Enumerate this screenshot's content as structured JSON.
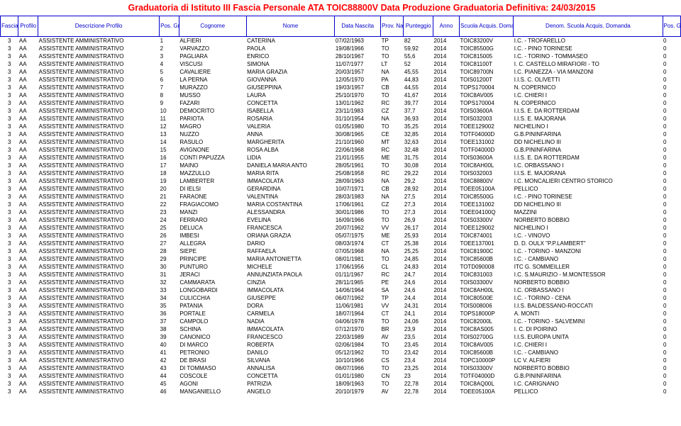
{
  "title": "Graduatoria di Istituto III Fascia Personale ATA TOIC88800V Data Produzione Graduatoria Definitiva: 24/03/2015",
  "columns": [
    "Fascia",
    "Profilo",
    "Descrizione Profilo",
    "Pos. Grad uator ia",
    "Cognome",
    "Nome",
    "Data Nascita",
    "Prov. Nascita",
    "Punteggio",
    "Anno",
    "Scuola Acquis. Domanda",
    "Denom. Scuola Acquis. Domanda",
    "Pos. Gra d. Prov"
  ],
  "rows": [
    [
      "3",
      "AA",
      "ASSISTENTE AMMINISTRATIVO",
      "1",
      "ALFIERI",
      "CATERINA",
      "07/02/1963",
      "TP",
      "82",
      "2014",
      "TOIC83200V",
      "I.C. - TROFARELLO",
      "0"
    ],
    [
      "3",
      "AA",
      "ASSISTENTE AMMINISTRATIVO",
      "2",
      "VARVAZZO",
      "PAOLA",
      "19/08/1966",
      "TO",
      "59,92",
      "2014",
      "TOIC85500G",
      "I.C. - PINO TORINESE",
      "0"
    ],
    [
      "3",
      "AA",
      "ASSISTENTE AMMINISTRATIVO",
      "3",
      "PAGLIARA",
      "ENRICO",
      "28/10/1967",
      "TO",
      "55,6",
      "2014",
      "TOIC815005",
      "I.C. - TORINO - TOMMASEO",
      "0"
    ],
    [
      "3",
      "AA",
      "ASSISTENTE AMMINISTRATIVO",
      "4",
      "VISCUSI",
      "SIMONA",
      "11/07/1977",
      "LT",
      "52",
      "2014",
      "TOIC81100T",
      "I. C. CASTELLO MIRAFIORI - TO",
      "0"
    ],
    [
      "3",
      "AA",
      "ASSISTENTE AMMINISTRATIVO",
      "5",
      "CAVALIERE",
      "MARIA GRAZIA",
      "20/03/1957",
      "NA",
      "45,55",
      "2014",
      "TOIC89700N",
      "I.C. PIANEZZA - VIA MANZONI",
      "0"
    ],
    [
      "3",
      "AA",
      "ASSISTENTE AMMINISTRATIVO",
      "6",
      "LA PERNA",
      "GIOVANNA",
      "12/05/1970",
      "PA",
      "44,83",
      "2014",
      "TOIS01200T",
      "I.I.S. C. OLIVETTI",
      "0"
    ],
    [
      "3",
      "AA",
      "ASSISTENTE AMMINISTRATIVO",
      "7",
      "MURAZZO",
      "GIUSEPPINA",
      "19/03/1957",
      "CB",
      "44,55",
      "2014",
      "TOPS170004",
      "N. COPERNICO",
      "0"
    ],
    [
      "3",
      "AA",
      "ASSISTENTE AMMINISTRATIVO",
      "8",
      "MUSSO",
      "LAURA",
      "25/10/1970",
      "TO",
      "41,67",
      "2014",
      "TOIC8AV005",
      "I.C. CHIERI I",
      "0"
    ],
    [
      "3",
      "AA",
      "ASSISTENTE AMMINISTRATIVO",
      "9",
      "FAZARI",
      "CONCETTA",
      "13/01/1962",
      "RC",
      "39,77",
      "2014",
      "TOPS170004",
      "N. COPERNICO",
      "0"
    ],
    [
      "3",
      "AA",
      "ASSISTENTE AMMINISTRATIVO",
      "10",
      "DEMOCRITO",
      "ISABELLA",
      "23/11/1983",
      "CZ",
      "37,7",
      "2014",
      "TOIS03600A",
      "I.I.S. E. DA ROTTERDAM",
      "0"
    ],
    [
      "3",
      "AA",
      "ASSISTENTE AMMINISTRATIVO",
      "11",
      "PARIOTA",
      "ROSARIA",
      "31/10/1954",
      "NA",
      "36,93",
      "2014",
      "TOIS032003",
      "I.I.S. E. MAJORANA",
      "0"
    ],
    [
      "3",
      "AA",
      "ASSISTENTE AMMINISTRATIVO",
      "12",
      "MAGRO",
      "VALERIA",
      "01/05/1980",
      "TO",
      "35,25",
      "2014",
      "TOEE129002",
      "NICHELINO I",
      "0"
    ],
    [
      "3",
      "AA",
      "ASSISTENTE AMMINISTRATIVO",
      "13",
      "NUZZO",
      "ANNA",
      "30/08/1965",
      "CE",
      "32,85",
      "2014",
      "TOTF04000D",
      "G.B.PININFARINA",
      "0"
    ],
    [
      "3",
      "AA",
      "ASSISTENTE AMMINISTRATIVO",
      "14",
      "RASULO",
      "MARGHERITA",
      "21/10/1960",
      "MT",
      "32,63",
      "2014",
      "TOEE131002",
      "DD NICHELINO III",
      "0"
    ],
    [
      "3",
      "AA",
      "ASSISTENTE AMMINISTRATIVO",
      "15",
      "AVIGNONE",
      "ROSA ALBA",
      "22/06/1968",
      "RC",
      "32,48",
      "2014",
      "TOTF04000D",
      "G.B.PININFARINA",
      "0"
    ],
    [
      "3",
      "AA",
      "ASSISTENTE AMMINISTRATIVO",
      "16",
      "CONTI PAPUZZA",
      "LIDIA",
      "21/01/1955",
      "ME",
      "31,75",
      "2014",
      "TOIS03600A",
      "I.I.S. E. DA ROTTERDAM",
      "0"
    ],
    [
      "3",
      "AA",
      "ASSISTENTE AMMINISTRATIVO",
      "17",
      "MAINO",
      "DANIELA MARIA ANTO",
      "28/05/1961",
      "TO",
      "30,08",
      "2014",
      "TOIC8AH00L",
      "I.C. ORBASSANO I",
      "0"
    ],
    [
      "3",
      "AA",
      "ASSISTENTE AMMINISTRATIVO",
      "18",
      "MAZZULLO",
      "MARIA RITA",
      "25/08/1958",
      "RC",
      "29,22",
      "2014",
      "TOIS032003",
      "I.I.S. E. MAJORANA",
      "0"
    ],
    [
      "3",
      "AA",
      "ASSISTENTE AMMINISTRATIVO",
      "19",
      "LAMBERTER",
      "IMMACOLATA",
      "28/09/1963",
      "NA",
      "29,2",
      "2014",
      "TOIC88800V",
      "I.C. MONCALIERI CENTRO STORICO",
      "0"
    ],
    [
      "3",
      "AA",
      "ASSISTENTE AMMINISTRATIVO",
      "20",
      "DI IELSI",
      "GERARDINA",
      "10/07/1971",
      "CB",
      "28,92",
      "2014",
      "TOEE05100A",
      "PELLICO",
      "0"
    ],
    [
      "3",
      "AA",
      "ASSISTENTE AMMINISTRATIVO",
      "21",
      "FARAONE",
      "VALENTINA",
      "28/03/1983",
      "NA",
      "27,5",
      "2014",
      "TOIC85500G",
      "I.C. - PINO TORINESE",
      "0"
    ],
    [
      "3",
      "AA",
      "ASSISTENTE AMMINISTRATIVO",
      "22",
      "FRAGIACOMO",
      "MARIA COSTANTINA",
      "17/06/1961",
      "CZ",
      "27,3",
      "2014",
      "TOEE131002",
      "DD NICHELINO III",
      "0"
    ],
    [
      "3",
      "AA",
      "ASSISTENTE AMMINISTRATIVO",
      "23",
      "MANZI",
      "ALESSANDRA",
      "30/01/1986",
      "TO",
      "27,3",
      "2014",
      "TOEE04100Q",
      "MAZZINI",
      "0"
    ],
    [
      "3",
      "AA",
      "ASSISTENTE AMMINISTRATIVO",
      "24",
      "FERRARO",
      "EVELINA",
      "16/09/1966",
      "TO",
      "26,9",
      "2014",
      "TOIS03300V",
      "NORBERTO BOBBIO",
      "0"
    ],
    [
      "3",
      "AA",
      "ASSISTENTE AMMINISTRATIVO",
      "25",
      "DELUCA",
      "FRANCESCA",
      "20/07/1962",
      "VV",
      "26,17",
      "2014",
      "TOEE129002",
      "NICHELINO I",
      "0"
    ],
    [
      "3",
      "AA",
      "ASSISTENTE AMMINISTRATIVO",
      "26",
      "IMBESI",
      "ORIANA GRAZIA",
      "05/07/1975",
      "ME",
      "25,93",
      "2014",
      "TOIC874001",
      "I.C. - VINOVO",
      "0"
    ],
    [
      "3",
      "AA",
      "ASSISTENTE AMMINISTRATIVO",
      "27",
      "ALLEGRA",
      "DARIO",
      "08/03/1974",
      "CT",
      "25,38",
      "2014",
      "TOEE137001",
      "D. D. OULX  \"P.P.LAMBERT\"",
      "0"
    ],
    [
      "3",
      "AA",
      "ASSISTENTE AMMINISTRATIVO",
      "28",
      "SIEPE",
      "RAFFAELA",
      "07/05/1968",
      "NA",
      "25,25",
      "2014",
      "TOIC81900C",
      "I.C. - TORINO - MANZONI",
      "0"
    ],
    [
      "3",
      "AA",
      "ASSISTENTE AMMINISTRATIVO",
      "29",
      "PRINCIPE",
      "MARIA ANTONIETTA",
      "08/01/1981",
      "TO",
      "24,85",
      "2014",
      "TOIC85600B",
      "I.C. - CAMBIANO",
      "0"
    ],
    [
      "3",
      "AA",
      "ASSISTENTE AMMINISTRATIVO",
      "30",
      "PUNTURO",
      "MICHELE",
      "17/06/1956",
      "CL",
      "24,83",
      "2014",
      "TOTD090008",
      "ITC G. SOMMEILLER",
      "0"
    ],
    [
      "3",
      "AA",
      "ASSISTENTE AMMINISTRATIVO",
      "31",
      "JERACI",
      "ANNUNZIATA PAOLA",
      "01/11/1967",
      "RC",
      "24,7",
      "2014",
      "TOIC831003",
      "I.C. S.MAURIZIO - M.MONTESSOR",
      "0"
    ],
    [
      "3",
      "AA",
      "ASSISTENTE AMMINISTRATIVO",
      "32",
      "CAMMARATA",
      "CINZIA",
      "28/11/1965",
      "PE",
      "24,6",
      "2014",
      "TOIS03300V",
      "NORBERTO BOBBIO",
      "0"
    ],
    [
      "3",
      "AA",
      "ASSISTENTE AMMINISTRATIVO",
      "33",
      "LONGOBARDI",
      "IMMACOLATA",
      "14/06/1964",
      "SA",
      "24,6",
      "2014",
      "TOIC8AH00L",
      "I.C. ORBASSANO I",
      "0"
    ],
    [
      "3",
      "AA",
      "ASSISTENTE AMMINISTRATIVO",
      "34",
      "CULICCHIA",
      "GIUSEPPE",
      "06/07/1962",
      "TP",
      "24,4",
      "2014",
      "TOIC80500E",
      "I.C. - TORINO - CENA",
      "0"
    ],
    [
      "3",
      "AA",
      "ASSISTENTE AMMINISTRATIVO",
      "35",
      "PATANIA",
      "DORA",
      "11/06/1981",
      "VV",
      "24,31",
      "2014",
      "TOIS008006",
      "I.I.S. BALDESSANO-ROCCATI",
      "0"
    ],
    [
      "3",
      "AA",
      "ASSISTENTE AMMINISTRATIVO",
      "36",
      "PORTALE",
      "CARMELA",
      "18/07/1964",
      "CT",
      "24,1",
      "2014",
      "TOPS18000P",
      "A. MONTI",
      "0"
    ],
    [
      "3",
      "AA",
      "ASSISTENTE AMMINISTRATIVO",
      "37",
      "CAMPOLO",
      "NADIA",
      "04/06/1978",
      "TO",
      "24,06",
      "2014",
      "TOIC82000L",
      "I.C. - TORINO - SALVEMINI",
      "0"
    ],
    [
      "3",
      "AA",
      "ASSISTENTE AMMINISTRATIVO",
      "38",
      "SCHINA",
      "IMMACOLATA",
      "07/12/1970",
      "BR",
      "23,9",
      "2014",
      "TOIC8AS005",
      "I. C. DI POIRINO",
      "0"
    ],
    [
      "3",
      "AA",
      "ASSISTENTE AMMINISTRATIVO",
      "39",
      "CANONICO",
      "FRANCESCO",
      "22/03/1989",
      "AV",
      "23,5",
      "2014",
      "TOIS02700G",
      "I.I.S. EUROPA UNITA",
      "0"
    ],
    [
      "3",
      "AA",
      "ASSISTENTE AMMINISTRATIVO",
      "40",
      "DI MARCO",
      "ROBERTA",
      "02/06/1984",
      "TO",
      "23,45",
      "2014",
      "TOIC8AV005",
      "I.C. CHIERI I",
      "0"
    ],
    [
      "3",
      "AA",
      "ASSISTENTE AMMINISTRATIVO",
      "41",
      "PETRONIO",
      "DANILO",
      "05/12/1962",
      "TO",
      "23,42",
      "2014",
      "TOIC85600B",
      "I.C. - CAMBIANO",
      "0"
    ],
    [
      "3",
      "AA",
      "ASSISTENTE AMMINISTRATIVO",
      "42",
      "DE BRASI",
      "SILVANA",
      "10/10/1966",
      "CS",
      "23,4",
      "2014",
      "TOPC10000P",
      "LC V. ALFIERI",
      "0"
    ],
    [
      "3",
      "AA",
      "ASSISTENTE AMMINISTRATIVO",
      "43",
      "DI TOMMASO",
      "ANNALISA",
      "06/07/1966",
      "TO",
      "23,25",
      "2014",
      "TOIS03300V",
      "NORBERTO BOBBIO",
      "0"
    ],
    [
      "3",
      "AA",
      "ASSISTENTE AMMINISTRATIVO",
      "44",
      "COSCOLE",
      "CONCETTA",
      "01/01/1980",
      "CN",
      "23",
      "2014",
      "TOTF04000D",
      "G.B.PININFARINA",
      "0"
    ],
    [
      "3",
      "AA",
      "ASSISTENTE AMMINISTRATIVO",
      "45",
      "AGONI",
      "PATRIZIA",
      "18/09/1963",
      "TO",
      "22,78",
      "2014",
      "TOIC8AQ00L",
      "I.C. CARIGNANO",
      "0"
    ],
    [
      "3",
      "AA",
      "ASSISTENTE AMMINISTRATIVO",
      "46",
      "MANGANIELLO",
      "ANGELO",
      "20/10/1979",
      "AV",
      "22,78",
      "2014",
      "TOEE05100A",
      "PELLICO",
      "0"
    ]
  ]
}
